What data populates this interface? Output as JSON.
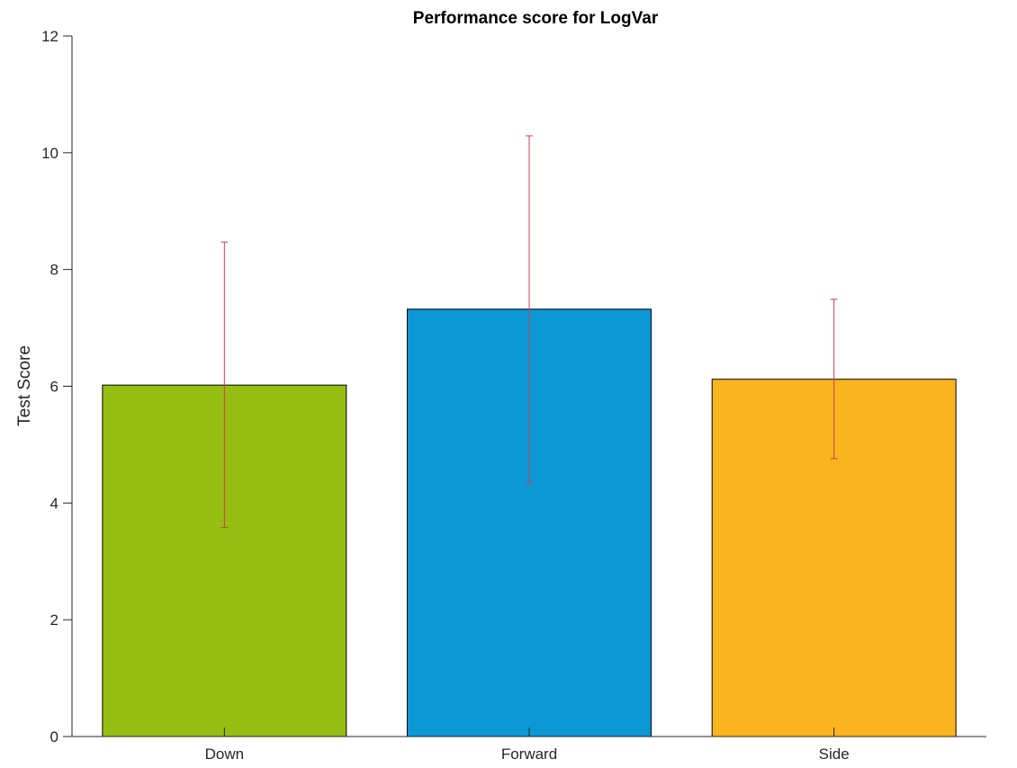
{
  "chart_data": {
    "type": "bar",
    "title": "Performance score for LogVar",
    "xlabel": "",
    "ylabel": "Test Score",
    "categories": [
      "Down",
      "Forward",
      "Side"
    ],
    "values": [
      6.02,
      7.32,
      6.12
    ],
    "error_low": [
      3.58,
      4.33,
      4.76
    ],
    "error_high": [
      8.47,
      10.29,
      7.49
    ],
    "ylim": [
      0,
      12
    ],
    "yticks": [
      "0",
      "2",
      "4",
      "6",
      "8",
      "10",
      "12"
    ],
    "grid": false,
    "colors": {
      "bars": [
        "#96BE12",
        "#0C97D5",
        "#FAB41E"
      ],
      "error_bars": "#C8414B"
    }
  }
}
